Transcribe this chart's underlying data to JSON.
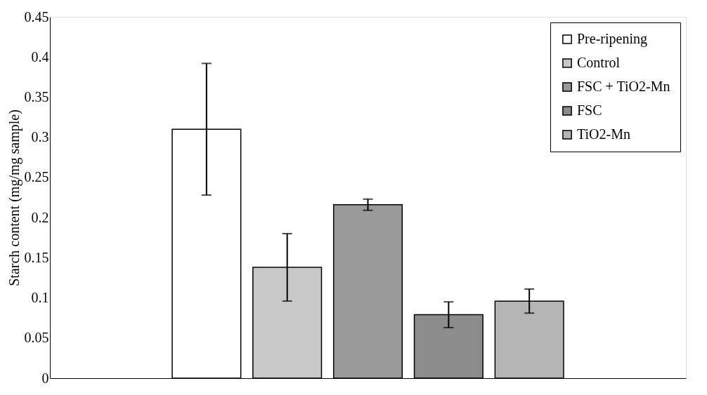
{
  "chart_data": {
    "type": "bar",
    "ylabel": "Starch content (mg/mg sample)",
    "categories": [
      null
    ],
    "series": [
      {
        "name": "Pre-ripening",
        "color": "#ffffff",
        "values": [
          0.31
        ],
        "errors": [
          0.082
        ]
      },
      {
        "name": "Control",
        "color": "#c8c8c8",
        "values": [
          0.138
        ],
        "errors": [
          0.042
        ]
      },
      {
        "name": "FSC + TiO2-Mn",
        "color": "#9a9a9a",
        "values": [
          0.216
        ],
        "errors": [
          0.007
        ]
      },
      {
        "name": "FSC",
        "color": "#8c8c8c",
        "values": [
          0.079
        ],
        "errors": [
          0.016
        ]
      },
      {
        "name": "TiO2-Mn",
        "color": "#b4b4b4",
        "values": [
          0.096
        ],
        "errors": [
          0.015
        ]
      }
    ],
    "ylim": [
      0,
      0.45
    ],
    "yticks": [
      0,
      0.05,
      0.1,
      0.15,
      0.2,
      0.25,
      0.3,
      0.35,
      0.4,
      0.45
    ],
    "grid": false,
    "legend": "top right"
  }
}
